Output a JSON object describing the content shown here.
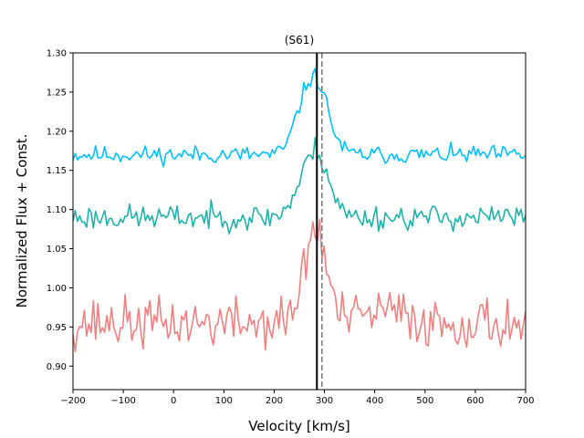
{
  "chart_data": {
    "type": "line",
    "title": "(S61)",
    "xlabel": "Velocity [km/s]",
    "ylabel": "Normalized Flux + Const.",
    "xlim": [
      -200,
      700
    ],
    "ylim": [
      0.87,
      1.3
    ],
    "xticks": [
      -200,
      -100,
      0,
      100,
      200,
      300,
      400,
      500,
      600,
      700
    ],
    "xtick_labels": [
      "−200",
      "−100",
      "0",
      "100",
      "200",
      "300",
      "400",
      "500",
      "600",
      "700"
    ],
    "yticks": [
      0.9,
      0.95,
      1.0,
      1.05,
      1.1,
      1.15,
      1.2,
      1.25,
      1.3
    ],
    "ytick_labels": [
      "0.90",
      "0.95",
      "1.00",
      "1.05",
      "1.10",
      "1.15",
      "1.20",
      "1.25",
      "1.30"
    ],
    "vlines": [
      {
        "x": 285,
        "style": "solid",
        "color": "#000000"
      },
      {
        "x": 295,
        "style": "dashed",
        "color": "#808080"
      }
    ],
    "series": [
      {
        "name": "top",
        "color": "#00bfff",
        "baseline": 1.17,
        "noise": 0.007,
        "seed": 11,
        "peaks": [
          {
            "center": 282,
            "amp": 0.095,
            "width": 25
          },
          {
            "center": 250,
            "amp": 0.02,
            "width": 18
          }
        ]
      },
      {
        "name": "middle",
        "color": "#20b2aa",
        "baseline": 1.09,
        "noise": 0.01,
        "seed": 23,
        "peaks": [
          {
            "center": 283,
            "amp": 0.085,
            "width": 25
          },
          {
            "center": 240,
            "amp": 0.01,
            "width": 20
          }
        ]
      },
      {
        "name": "bottom",
        "color": "#f08080",
        "baseline": 0.955,
        "noise": 0.02,
        "seed": 37,
        "peaks": [
          {
            "center": 282,
            "amp": 0.12,
            "width": 22
          },
          {
            "center": 420,
            "amp": 0.015,
            "width": 40
          }
        ]
      }
    ]
  }
}
